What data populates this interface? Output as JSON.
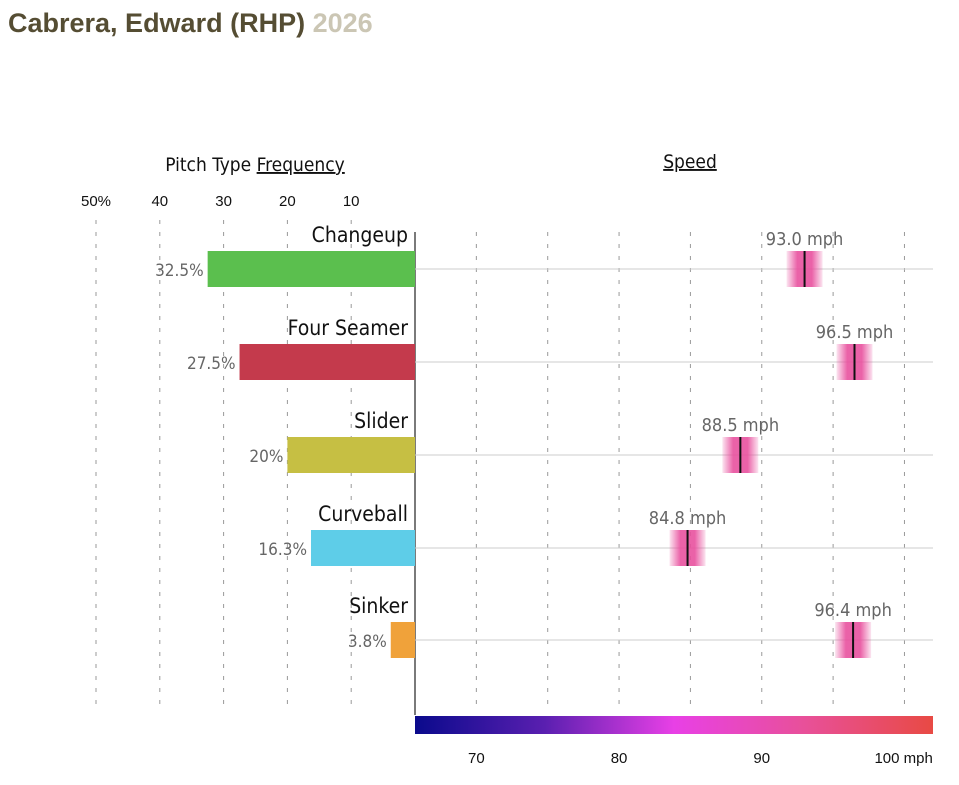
{
  "header": {
    "player": "Cabrera, Edward (RHP)",
    "year": "2026"
  },
  "chart_data": {
    "type": "bar",
    "frequency_title_prefix": "Pitch Type ",
    "frequency_title_link": "Frequency",
    "speed_title": "Speed",
    "frequency_ticks": [
      {
        "value": 50,
        "label": "50%"
      },
      {
        "value": 40,
        "label": "40"
      },
      {
        "value": 30,
        "label": "30"
      },
      {
        "value": 20,
        "label": "20"
      },
      {
        "value": 10,
        "label": "10"
      }
    ],
    "speed_ticks": [
      {
        "value": 70,
        "label": "70"
      },
      {
        "value": 80,
        "label": "80"
      },
      {
        "value": 90,
        "label": "90"
      },
      {
        "value": 100,
        "label": "100 mph"
      }
    ],
    "speed_range": [
      65.7,
      102
    ],
    "pitches": [
      {
        "name": "Changeup",
        "freq": 32.5,
        "freq_label": "32.5%",
        "color": "#5bbf4e",
        "speed": 93.0,
        "speed_label": "93.0 mph"
      },
      {
        "name": "Four Seamer",
        "freq": 27.5,
        "freq_label": "27.5%",
        "color": "#c43a4c",
        "speed": 96.5,
        "speed_label": "96.5 mph"
      },
      {
        "name": "Slider",
        "freq": 20,
        "freq_label": "20%",
        "color": "#c6bf43",
        "speed": 88.5,
        "speed_label": "88.5 mph"
      },
      {
        "name": "Curveball",
        "freq": 16.3,
        "freq_label": "16.3%",
        "color": "#5ecde8",
        "speed": 84.8,
        "speed_label": "84.8 mph"
      },
      {
        "name": "Sinker",
        "freq": 3.8,
        "freq_label": "3.8%",
        "color": "#f0a23a",
        "speed": 96.4,
        "speed_label": "96.4 mph"
      }
    ]
  }
}
